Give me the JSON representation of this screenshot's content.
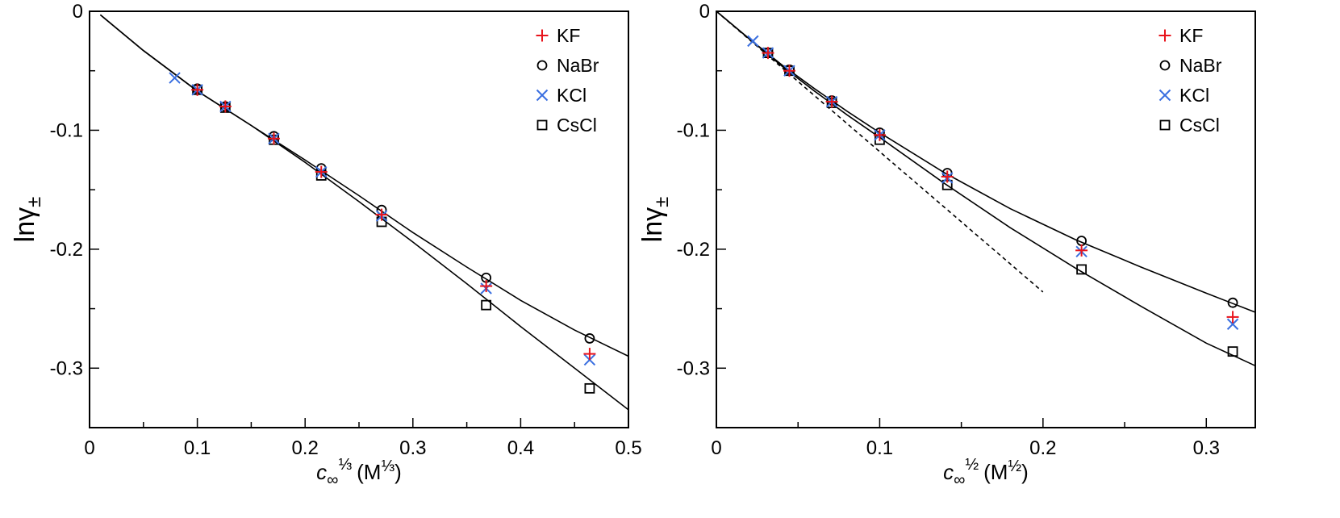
{
  "chart_data": [
    {
      "type": "scatter",
      "xlabel": {
        "var": "c",
        "sub": "∞",
        "sup": "⅓",
        "unit": "(M",
        "unit_sup": "⅓",
        "unit_close": ")"
      },
      "ylabel": {
        "base": "lnγ",
        "sub": "±"
      },
      "xlim": [
        0,
        0.5
      ],
      "ylim": [
        -0.35,
        0
      ],
      "xticks": [
        0,
        0.1,
        0.2,
        0.3,
        0.4,
        0.5
      ],
      "xtick_labels": [
        "0",
        "0.1",
        "0.2",
        "0.3",
        "0.4",
        "0.5"
      ],
      "yticks": [
        0,
        -0.1,
        -0.2,
        -0.3
      ],
      "ytick_labels": [
        "0",
        "-0.1",
        "-0.2",
        "-0.3"
      ],
      "legend_position": "top-right",
      "series": [
        {
          "name": "KF",
          "marker": "plus",
          "color": "#e8141c",
          "x": [
            0.1,
            0.126,
            0.171,
            0.215,
            0.271,
            0.368,
            0.464
          ],
          "y": [
            -0.066,
            -0.08,
            -0.107,
            -0.135,
            -0.171,
            -0.231,
            -0.288
          ]
        },
        {
          "name": "NaBr",
          "marker": "circle",
          "color": "#000000",
          "x": [
            0.1,
            0.126,
            0.171,
            0.215,
            0.271,
            0.368,
            0.464
          ],
          "y": [
            -0.065,
            -0.08,
            -0.105,
            -0.132,
            -0.167,
            -0.224,
            -0.275
          ]
        },
        {
          "name": "KCl",
          "marker": "x",
          "color": "#3a6fe0",
          "x": [
            0.079,
            0.1,
            0.126,
            0.171,
            0.215,
            0.271,
            0.368,
            0.464
          ],
          "y": [
            -0.056,
            -0.066,
            -0.08,
            -0.107,
            -0.135,
            -0.172,
            -0.233,
            -0.293
          ]
        },
        {
          "name": "CsCl",
          "marker": "square",
          "color": "#000000",
          "x": [
            0.1,
            0.126,
            0.171,
            0.215,
            0.271,
            0.368,
            0.464
          ],
          "y": [
            -0.066,
            -0.081,
            -0.108,
            -0.138,
            -0.177,
            -0.247,
            -0.317
          ]
        }
      ],
      "fit_lines": [
        {
          "name": "upper-fit",
          "style": "solid",
          "x": [
            0.01,
            0.05,
            0.1,
            0.15,
            0.2,
            0.25,
            0.3,
            0.35,
            0.4,
            0.45,
            0.5
          ],
          "y": [
            -0.003,
            -0.033,
            -0.067,
            -0.096,
            -0.125,
            -0.155,
            -0.186,
            -0.215,
            -0.243,
            -0.268,
            -0.29
          ]
        },
        {
          "name": "lower-fit",
          "style": "solid",
          "x": [
            0.01,
            0.05,
            0.1,
            0.15,
            0.2,
            0.25,
            0.3,
            0.35,
            0.4,
            0.45,
            0.5
          ],
          "y": [
            -0.003,
            -0.033,
            -0.067,
            -0.096,
            -0.127,
            -0.16,
            -0.194,
            -0.229,
            -0.265,
            -0.3,
            -0.335
          ]
        }
      ]
    },
    {
      "type": "scatter",
      "xlabel": {
        "var": "c",
        "sub": "∞",
        "sup": "½",
        "unit": "(M",
        "unit_sup": "½",
        "unit_close": ")"
      },
      "ylabel": {
        "base": "lnγ",
        "sub": "±"
      },
      "xlim": [
        0,
        0.33
      ],
      "ylim": [
        -0.35,
        0
      ],
      "xticks": [
        0,
        0.1,
        0.2,
        0.3
      ],
      "xtick_labels": [
        "0",
        "0.1",
        "0.2",
        "0.3"
      ],
      "yticks": [
        0,
        -0.1,
        -0.2,
        -0.3
      ],
      "ytick_labels": [
        "0",
        "-0.1",
        "-0.2",
        "-0.3"
      ],
      "legend_position": "top-right",
      "series": [
        {
          "name": "KF",
          "marker": "plus",
          "color": "#e8141c",
          "x": [
            0.0316,
            0.0447,
            0.0707,
            0.1,
            0.1414,
            0.2236,
            0.3162
          ],
          "y": [
            -0.035,
            -0.05,
            -0.076,
            -0.104,
            -0.139,
            -0.201,
            -0.257
          ]
        },
        {
          "name": "NaBr",
          "marker": "circle",
          "color": "#000000",
          "x": [
            0.0316,
            0.0447,
            0.0707,
            0.1,
            0.1414,
            0.2236,
            0.3162
          ],
          "y": [
            -0.035,
            -0.049,
            -0.075,
            -0.102,
            -0.136,
            -0.193,
            -0.245
          ]
        },
        {
          "name": "KCl",
          "marker": "x",
          "color": "#3a6fe0",
          "x": [
            0.0224,
            0.0316,
            0.0447,
            0.0707,
            0.1,
            0.1414,
            0.2236,
            0.3162
          ],
          "y": [
            -0.025,
            -0.035,
            -0.05,
            -0.076,
            -0.104,
            -0.14,
            -0.202,
            -0.263
          ]
        },
        {
          "name": "CsCl",
          "marker": "square",
          "color": "#000000",
          "x": [
            0.0316,
            0.0447,
            0.0707,
            0.1,
            0.1414,
            0.2236,
            0.3162
          ],
          "y": [
            -0.035,
            -0.05,
            -0.077,
            -0.108,
            -0.146,
            -0.217,
            -0.286
          ]
        }
      ],
      "fit_lines": [
        {
          "name": "upper-fit",
          "style": "solid",
          "x": [
            0,
            0.02,
            0.04,
            0.06,
            0.08,
            0.1,
            0.14,
            0.18,
            0.22,
            0.26,
            0.3,
            0.33
          ],
          "y": [
            0,
            -0.023,
            -0.045,
            -0.065,
            -0.084,
            -0.102,
            -0.136,
            -0.166,
            -0.192,
            -0.215,
            -0.237,
            -0.253
          ]
        },
        {
          "name": "lower-fit",
          "style": "solid",
          "x": [
            0,
            0.02,
            0.04,
            0.06,
            0.08,
            0.1,
            0.14,
            0.18,
            0.22,
            0.26,
            0.3,
            0.33
          ],
          "y": [
            0,
            -0.023,
            -0.046,
            -0.067,
            -0.087,
            -0.106,
            -0.145,
            -0.182,
            -0.216,
            -0.248,
            -0.279,
            -0.298
          ]
        },
        {
          "name": "limiting-law",
          "style": "dashed",
          "x": [
            0,
            0.2
          ],
          "y": [
            0,
            -0.236
          ]
        }
      ]
    }
  ]
}
